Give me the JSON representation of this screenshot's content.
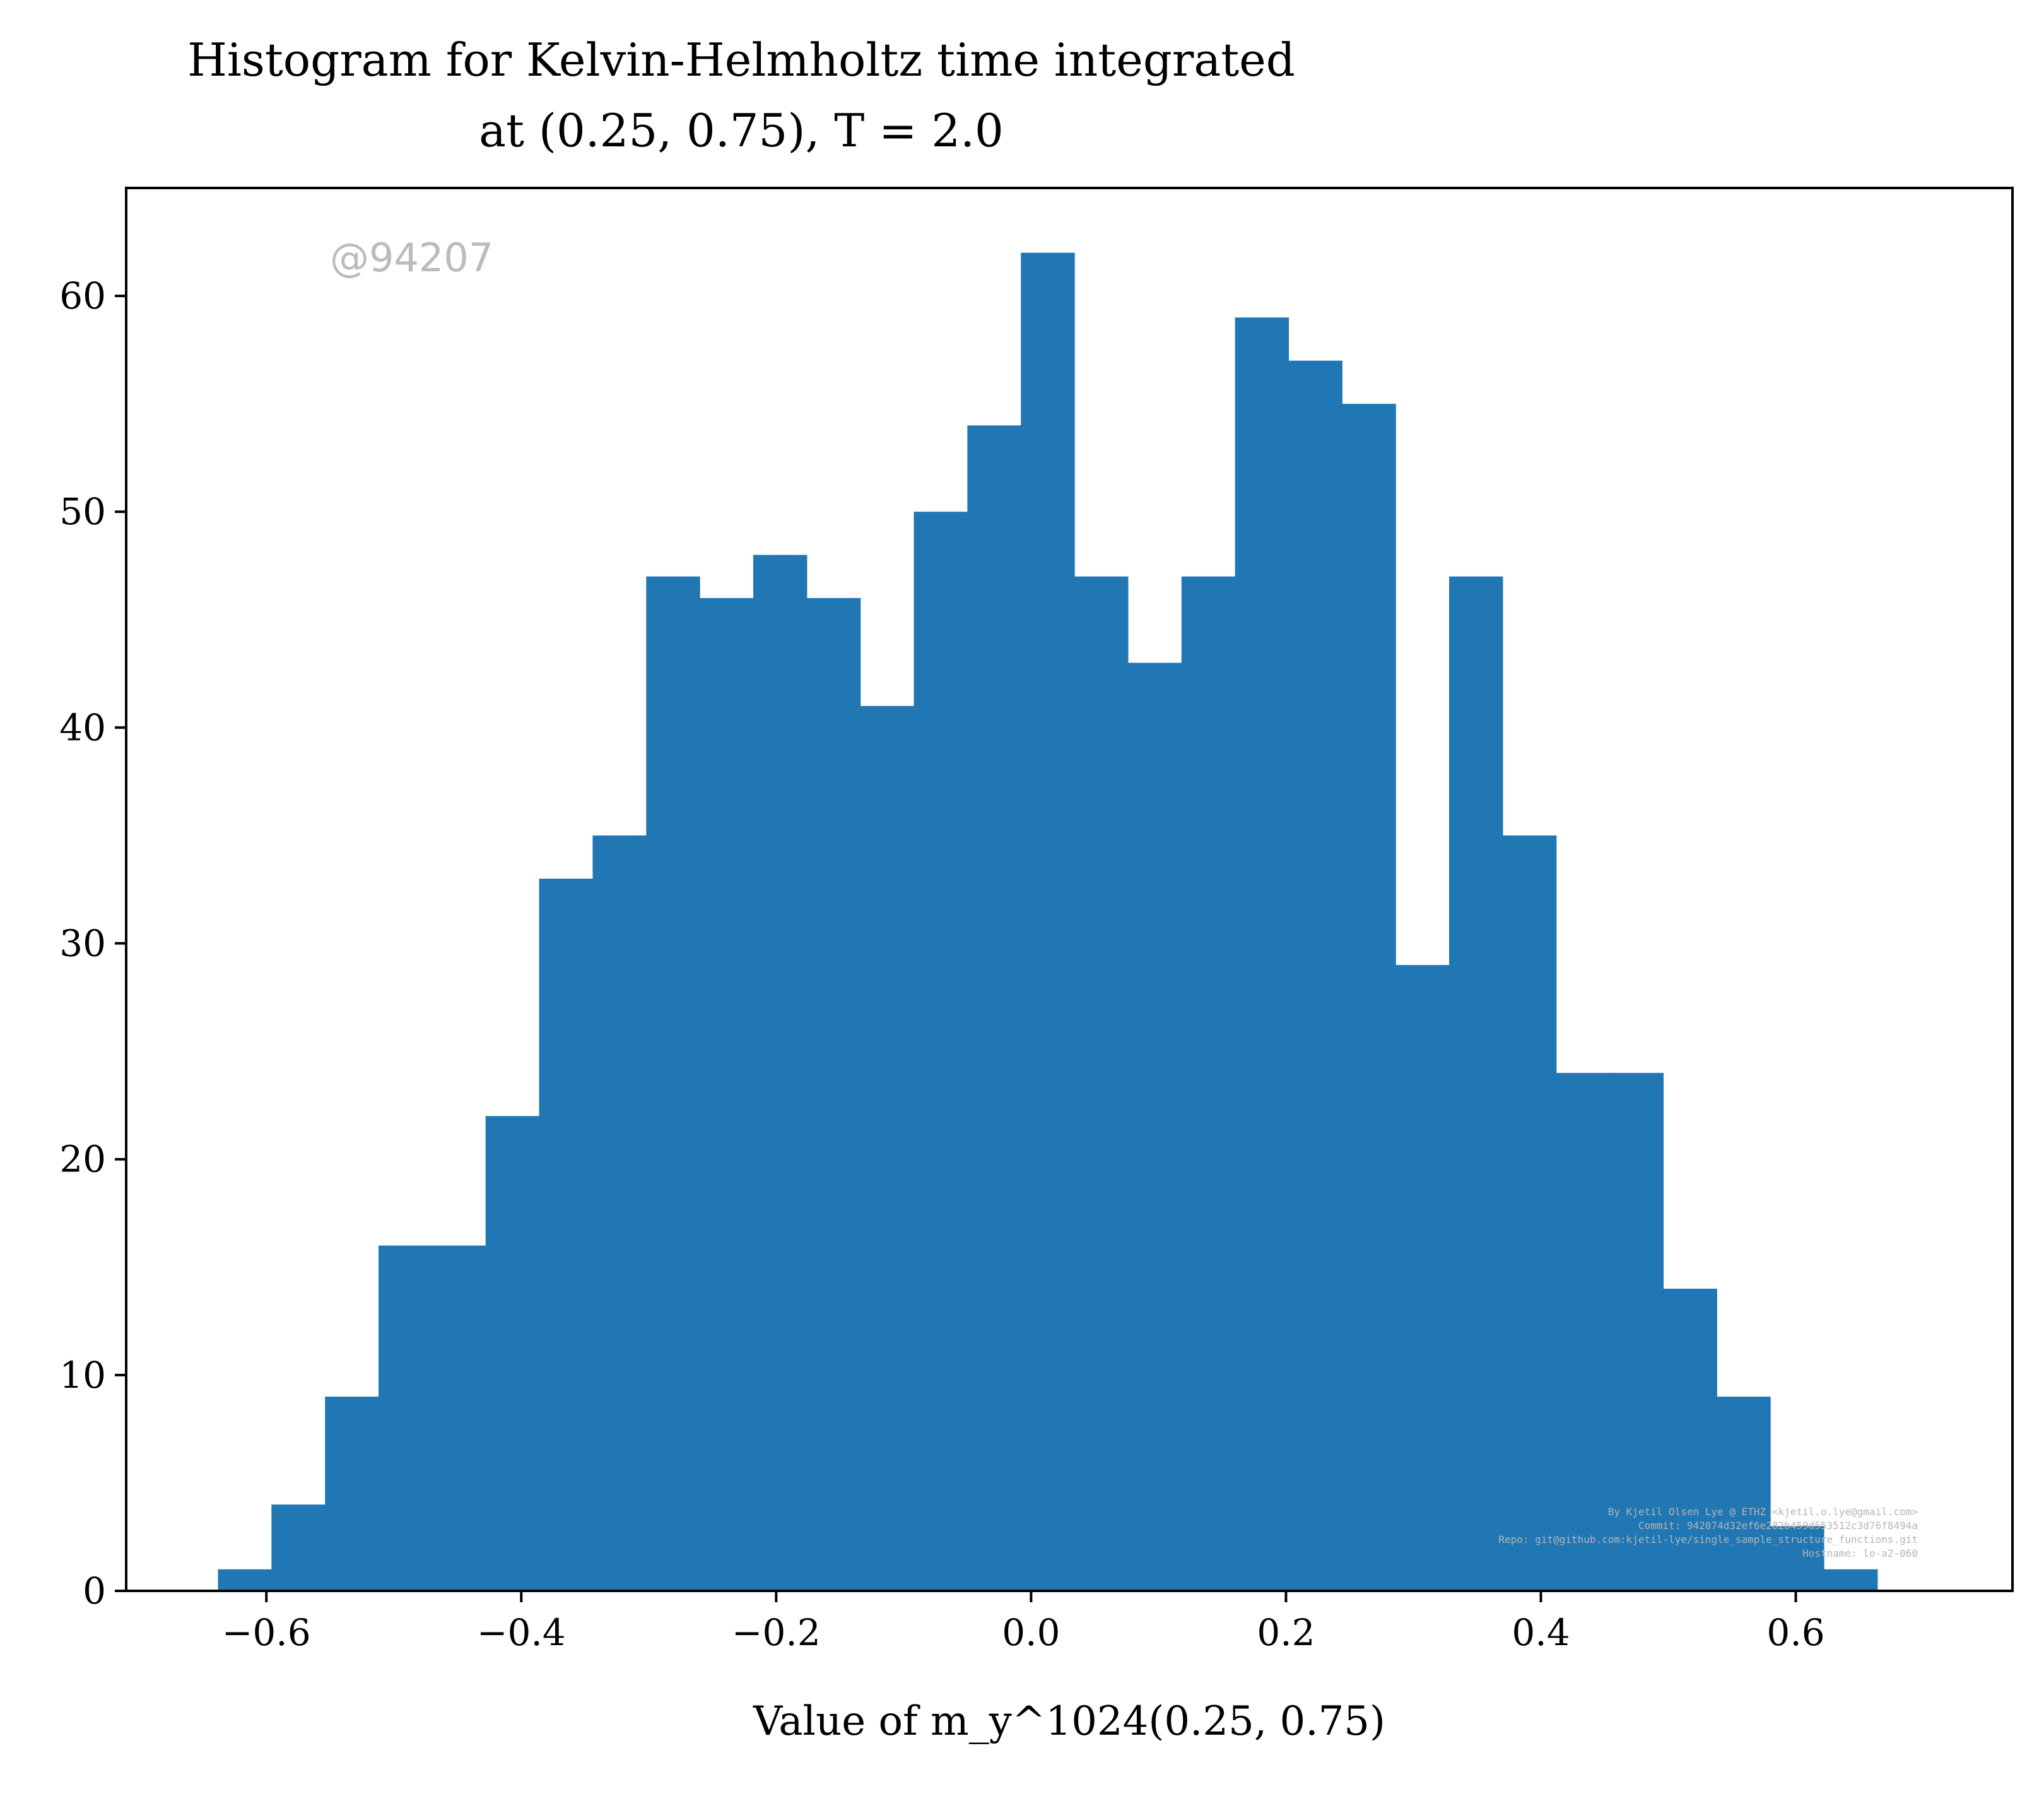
{
  "chart_data": {
    "type": "bar",
    "title_line1": "Histogram for Kelvin-Helmholtz time integrated",
    "title_line2": "at (0.25, 0.75), T = 2.0",
    "xlabel": "Value of m_y^1024(0.25, 0.75)",
    "ylabel": "",
    "xlim": [
      -0.71,
      0.77
    ],
    "ylim": [
      0,
      65
    ],
    "bin_edges": [
      -0.638,
      -0.596,
      -0.554,
      -0.512,
      -0.47,
      -0.428,
      -0.386,
      -0.344,
      -0.302,
      -0.26,
      -0.218,
      -0.176,
      -0.134,
      -0.092,
      -0.05,
      -0.008,
      0.034,
      0.076,
      0.118,
      0.16,
      0.202,
      0.244,
      0.286,
      0.328,
      0.37,
      0.412,
      0.454,
      0.496,
      0.538,
      0.58,
      0.622,
      0.664
    ],
    "values": [
      1,
      4,
      9,
      16,
      16,
      22,
      33,
      35,
      47,
      46,
      48,
      46,
      41,
      50,
      54,
      62,
      47,
      43,
      47,
      59,
      57,
      55,
      29,
      47,
      35,
      24,
      24,
      14,
      9,
      3,
      1
    ],
    "xticks": [
      -0.6,
      -0.4,
      -0.2,
      0.0,
      0.2,
      0.4,
      0.6
    ],
    "xtick_labels": [
      "−0.6",
      "−0.4",
      "−0.2",
      "0.0",
      "0.2",
      "0.4",
      "0.6"
    ],
    "yticks": [
      0,
      10,
      20,
      30,
      40,
      50,
      60
    ],
    "ytick_labels": [
      "0",
      "10",
      "20",
      "30",
      "40",
      "50",
      "60"
    ],
    "bar_color": "#2077b4",
    "grid": false,
    "watermark": "@94207",
    "watermark_color": "#bbbbbb",
    "footer_lines": [
      "By Kjetil Olsen Lye @ ETHZ <kjetil.o.lye@gmail.com>",
      "Commit: 942074d32ef6e282b459d553512c3d76f8494a",
      "Repo: git@github.com:kjetil-lye/single_sample_structure_functions.git",
      "Hostname: lo-a2-060"
    ],
    "footer_color": "#b5b5b5"
  }
}
